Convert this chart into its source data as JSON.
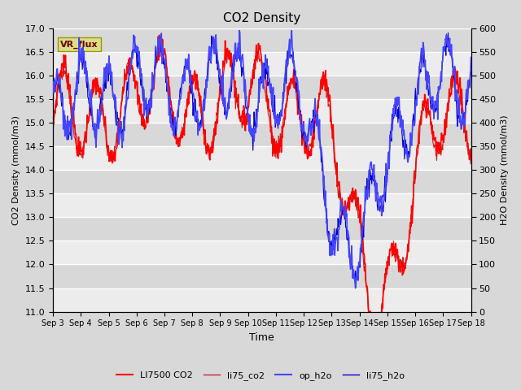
{
  "title": "CO2 Density",
  "xlabel": "Time",
  "ylabel_left": "CO2 Density (mmol/m3)",
  "ylabel_right": "H2O Density (mmol/m3)",
  "ylim_left": [
    11.0,
    17.0
  ],
  "ylim_right": [
    0,
    600
  ],
  "yticks_left": [
    11.0,
    11.5,
    12.0,
    12.5,
    13.0,
    13.5,
    14.0,
    14.5,
    15.0,
    15.5,
    16.0,
    16.5,
    17.0
  ],
  "yticks_right": [
    0,
    50,
    100,
    150,
    200,
    250,
    300,
    350,
    400,
    450,
    500,
    550,
    600
  ],
  "xtick_labels": [
    "Sep 3",
    "Sep 4",
    "Sep 5",
    "Sep 6",
    "Sep 7",
    "Sep 8",
    "Sep 9",
    "Sep 10",
    "Sep 11",
    "Sep 12",
    "Sep 13",
    "Sep 14",
    "Sep 15",
    "Sep 16",
    "Sep 17",
    "Sep 18"
  ],
  "legend_entries": [
    "LI7500 CO2",
    "li75_co2",
    "op_h2o",
    "li75_h2o"
  ],
  "li7500_color": "#ff0000",
  "li75_co2_color": "#cc2222",
  "op_h2o_color": "#4444ff",
  "li75_h2o_color": "#0000cc",
  "background_color": "#d8d8d8",
  "grid_color": "#eeeeee",
  "n_days": 16,
  "n_per_day": 48
}
